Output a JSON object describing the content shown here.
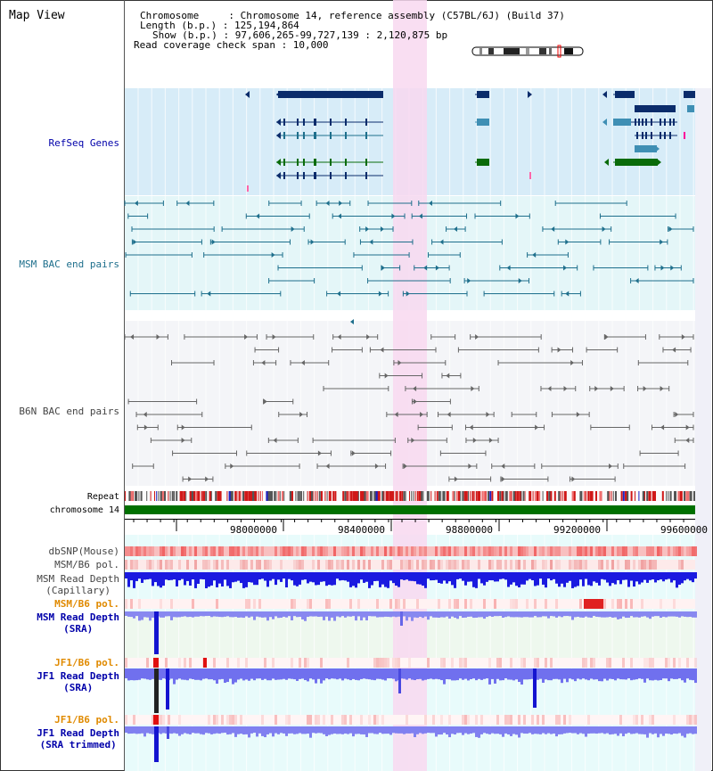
{
  "header": {
    "title": "Map View",
    "info_lines": [
      "Chromosome     : Chromosome 14, reference assembly (C57BL/6J) (Build 37)",
      "Length (b.p.) : 125,194,864",
      "Show (b.p.) : 97,606,265-99,727,139 : 2,120,875 bp",
      "Read coverage check span : 10,000"
    ]
  },
  "tracks": {
    "refseq": "RefSeq Genes",
    "msm_bac": "MSM BAC end pairs",
    "b6n_bac": "B6N BAC end pairs",
    "repeat": "Repeat",
    "chromosome": "chromosome 14",
    "dbsnp": "dbSNP(Mouse)",
    "msm_b6_pol": "MSM/B6 pol.",
    "msm_read_cap_1": "MSM Read Depth",
    "msm_read_cap_2": "(Capillary)",
    "msm_b6_pol2": "MSM/B6 pol.",
    "msm_sra_1": "MSM Read Depth",
    "msm_sra_2": "(SRA)",
    "jf1_b6_pol": "JF1/B6 pol.",
    "jf1_sra_1": "JF1 Read Depth",
    "jf1_sra_2": "(SRA)",
    "jf1_b6_pol2": "JF1/B6 pol.",
    "jf1_trim_1": "JF1 Read Depth",
    "jf1_trim_2": "(SRA trimmed)"
  },
  "axis": {
    "ticks": [
      "98000000",
      "98400000",
      "98800000",
      "99200000",
      "99600000"
    ]
  },
  "colors": {
    "refseq_bg": "#d7ecf8",
    "highlight": "#f8d8f0",
    "msm_bac": "#1e6f8c",
    "b6n_bac": "#666666",
    "chromosome": "#007000",
    "label_blue": "#0000aa",
    "label_orange": "#e08a00"
  }
}
